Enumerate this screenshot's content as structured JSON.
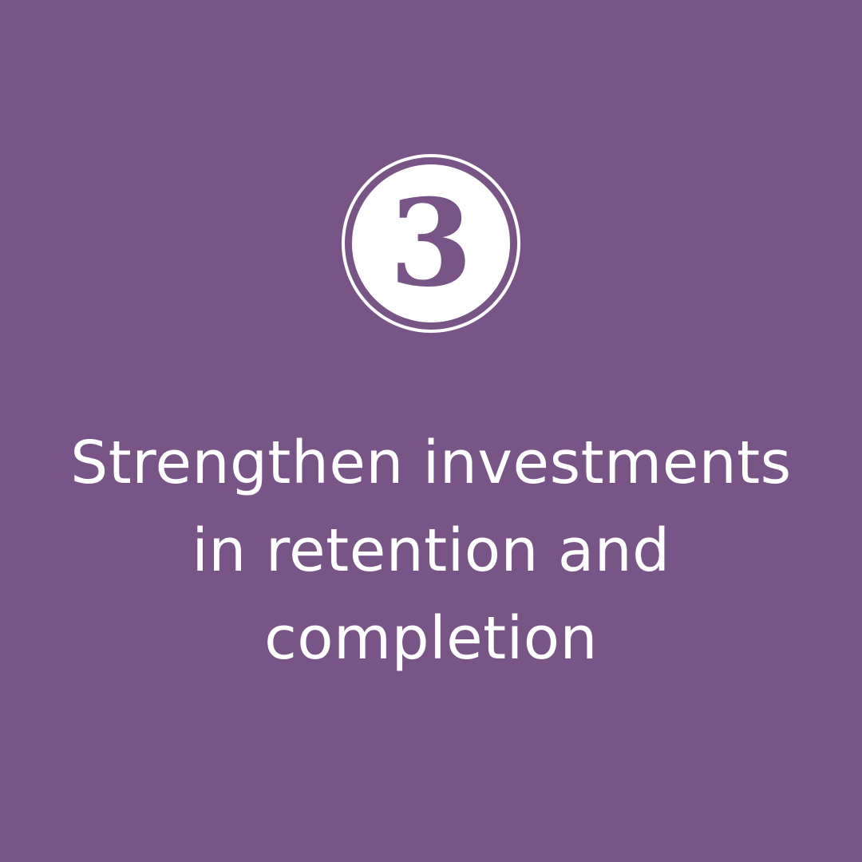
{
  "background_color": "#785487",
  "text_color": "#ffffff",
  "badge": {
    "number": "3",
    "icon": "circled-number-icon"
  },
  "headline": {
    "lines": [
      "Strengthen investments",
      "in retention and",
      "completion"
    ]
  }
}
